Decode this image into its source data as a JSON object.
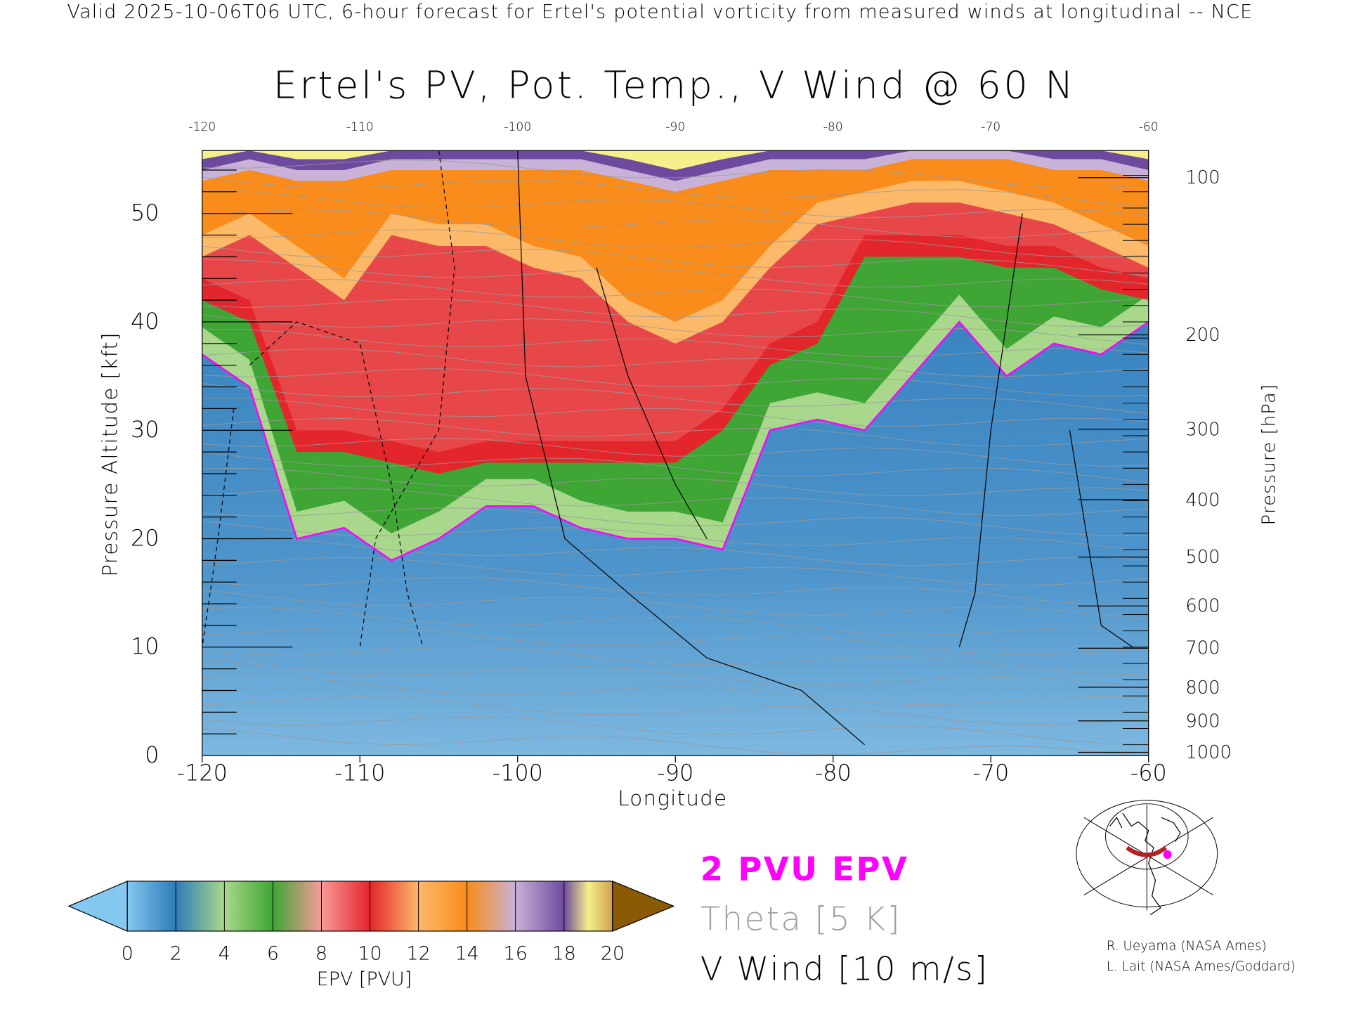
{
  "header": {
    "subtitle": "Valid 2025-10-06T06 UTC, 6-hour forecast for Ertel's potential vorticity from measured winds at longitudinal -- NCE",
    "title": "Ertel's PV, Pot. Temp., V Wind @ 60 N"
  },
  "chart_data": {
    "type": "heatmap",
    "title": "Ertel's PV, Pot. Temp., V Wind @ 60 N",
    "xlabel": "Longitude",
    "ylabel": "Pressure Altitude [kft]",
    "ylabel_right": "Pressure [hPa]",
    "xlim": [
      -120,
      -60
    ],
    "ylim": [
      0,
      56
    ],
    "x_ticks": [
      "-120",
      "-110",
      "-100",
      "-90",
      "-80",
      "-70",
      "-60"
    ],
    "x_tick_values": [
      -120,
      -110,
      -100,
      -90,
      -80,
      -70,
      -60
    ],
    "y_ticks": [
      "0",
      "10",
      "20",
      "30",
      "40",
      "50"
    ],
    "y_tick_values": [
      0,
      10,
      20,
      30,
      40,
      50
    ],
    "pressure_ticks": [
      "100",
      "200",
      "300",
      "400",
      "500",
      "600",
      "700",
      "800",
      "900",
      "1000"
    ],
    "pressure_tick_kft": [
      53.3,
      38.8,
      30.1,
      23.6,
      18.3,
      13.8,
      9.9,
      6.3,
      3.2,
      0.3
    ],
    "longitudes": [
      -120,
      -117,
      -114,
      -111,
      -108,
      -105,
      -102,
      -99,
      -96,
      -93,
      -90,
      -87,
      -84,
      -81,
      -78,
      -75,
      -72,
      -69,
      -66,
      -63,
      -60
    ],
    "epv_isolines_kft": [
      {
        "pvu": 2,
        "color": "#ff00ff",
        "values": [
          37,
          34,
          20,
          21,
          18,
          20,
          23,
          23,
          21,
          20,
          20,
          19,
          30,
          31,
          30,
          35,
          40,
          35,
          38,
          37,
          40
        ]
      },
      {
        "pvu": 6,
        "values": [
          42,
          40,
          28,
          28,
          27,
          26,
          27,
          27,
          27,
          27,
          27,
          30,
          36,
          38,
          46,
          46,
          46,
          45,
          45,
          43,
          42
        ]
      },
      {
        "pvu": 10,
        "values": [
          46,
          48,
          45,
          42,
          48,
          47,
          47,
          45,
          44,
          40,
          38,
          40,
          45,
          49,
          50,
          51,
          51,
          50,
          49,
          47,
          45
        ]
      },
      {
        "pvu": 14,
        "values": [
          53,
          54,
          53,
          53,
          54,
          54,
          54,
          54,
          54,
          53,
          52,
          53,
          54,
          54,
          54,
          55,
          55,
          55,
          54,
          54,
          53
        ]
      }
    ],
    "colorbar": {
      "label": "EPV [PVU]",
      "ticks": [
        "0",
        "2",
        "4",
        "6",
        "8",
        "10",
        "12",
        "14",
        "16",
        "18",
        "20"
      ],
      "colors": [
        "#84c8f0",
        "#2e7bb8",
        "#a9d88c",
        "#3fa535",
        "#f99a9a",
        "#e3262b",
        "#fdb96a",
        "#f98c1a",
        "#c8b2d8",
        "#6e4a9e",
        "#f5ef8c",
        "#8b5a05"
      ]
    }
  },
  "legend": {
    "pv_label": "2 PVU EPV",
    "theta_label": "Theta [5 K]",
    "wind_label": "V Wind [10 m/s]"
  },
  "credits": {
    "line1": "R. Ueyama (NASA Ames)",
    "line2": "L. Lait (NASA Ames/Goddard)"
  }
}
